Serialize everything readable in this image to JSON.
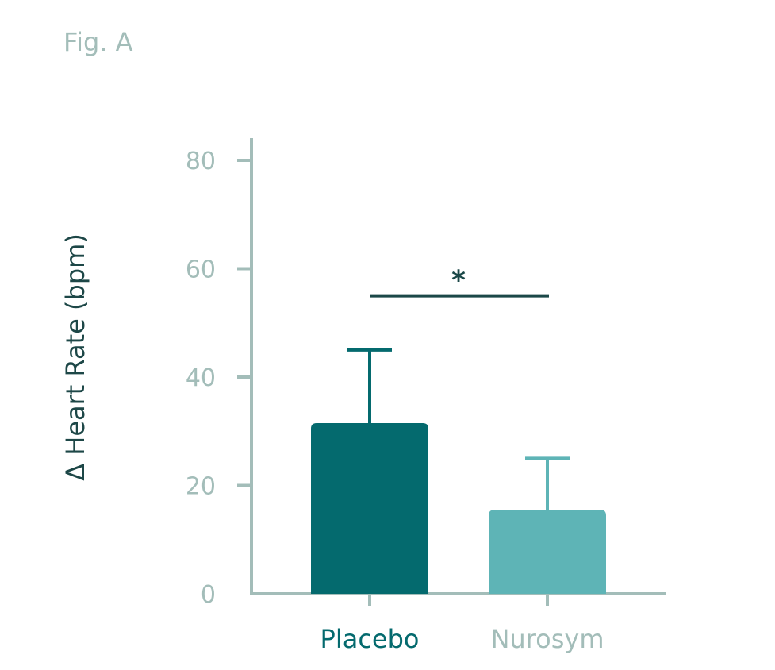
{
  "figure_label": "Fig. A",
  "colors": {
    "axis": "#a3bdb9",
    "tick_text": "#a3bdb9",
    "ylabel": "#1d4747",
    "placebo": "#046a6e",
    "nurosym": "#5eb4b6",
    "significance": "#1b4848"
  },
  "chart_data": {
    "type": "bar",
    "title": "",
    "xlabel": "",
    "ylabel": "Δ Heart Rate (bpm)",
    "ylim": [
      0,
      80
    ],
    "yticks": [
      "0",
      "20",
      "40",
      "60",
      "80"
    ],
    "categories": [
      "Placebo",
      "Nurosym"
    ],
    "values": [
      31.5,
      15.5
    ],
    "error": [
      13.5,
      9.5
    ],
    "significance": {
      "between": [
        "Placebo",
        "Nurosym"
      ],
      "y": 55,
      "label": "*"
    },
    "grid": false,
    "legend": "none"
  }
}
